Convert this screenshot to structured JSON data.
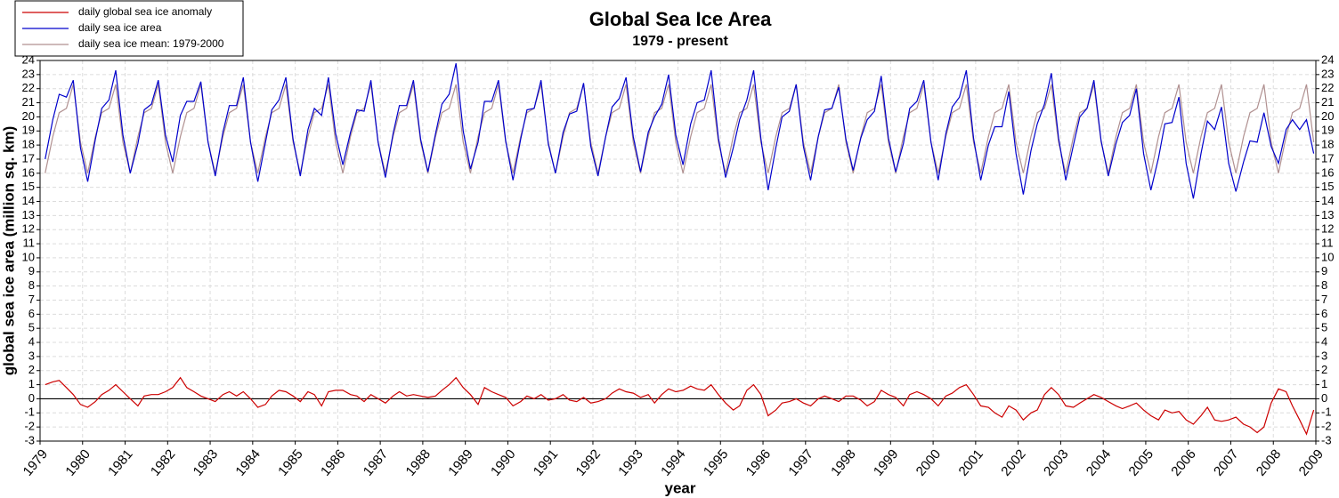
{
  "chart_data": {
    "type": "line",
    "title": "Global Sea Ice Area",
    "subtitle": "1979 - present",
    "x_label": "year",
    "y_label": "global sea ice area (million sq. km)",
    "grid": true,
    "legend": "top-left",
    "xlim": [
      1979,
      2009
    ],
    "ylim": [
      -3,
      24
    ],
    "xticks": [
      1979,
      1980,
      1981,
      1982,
      1983,
      1984,
      1985,
      1986,
      1987,
      1988,
      1989,
      1990,
      1991,
      1992,
      1993,
      1994,
      1995,
      1996,
      1997,
      1998,
      1999,
      2000,
      2001,
      2002,
      2003,
      2004,
      2005,
      2006,
      2007,
      2008,
      2009
    ],
    "yticks": [
      -3,
      -2,
      -1,
      0,
      1,
      2,
      3,
      4,
      5,
      6,
      7,
      8,
      9,
      10,
      11,
      12,
      13,
      14,
      15,
      16,
      17,
      18,
      19,
      20,
      21,
      22,
      23,
      24
    ],
    "x": [
      1979.12,
      1979.3,
      1979.45,
      1979.62,
      1979.78,
      1979.95,
      1980.12,
      1980.3,
      1980.45,
      1980.62,
      1980.78,
      1980.95,
      1981.12,
      1981.3,
      1981.45,
      1981.62,
      1981.78,
      1981.95,
      1982.12,
      1982.3,
      1982.45,
      1982.62,
      1982.78,
      1982.95,
      1983.12,
      1983.3,
      1983.45,
      1983.62,
      1983.78,
      1983.95,
      1984.12,
      1984.3,
      1984.45,
      1984.62,
      1984.78,
      1984.95,
      1985.12,
      1985.3,
      1985.45,
      1985.62,
      1985.78,
      1985.95,
      1986.12,
      1986.3,
      1986.45,
      1986.62,
      1986.78,
      1986.95,
      1987.12,
      1987.3,
      1987.45,
      1987.62,
      1987.78,
      1987.95,
      1988.12,
      1988.3,
      1988.45,
      1988.62,
      1988.78,
      1988.95,
      1989.12,
      1989.3,
      1989.45,
      1989.62,
      1989.78,
      1989.95,
      1990.12,
      1990.3,
      1990.45,
      1990.62,
      1990.78,
      1990.95,
      1991.12,
      1991.3,
      1991.45,
      1991.62,
      1991.78,
      1991.95,
      1992.12,
      1992.3,
      1992.45,
      1992.62,
      1992.78,
      1992.95,
      1993.12,
      1993.3,
      1993.45,
      1993.62,
      1993.78,
      1993.95,
      1994.12,
      1994.3,
      1994.45,
      1994.62,
      1994.78,
      1994.95,
      1995.12,
      1995.3,
      1995.45,
      1995.62,
      1995.78,
      1995.95,
      1996.12,
      1996.3,
      1996.45,
      1996.62,
      1996.78,
      1996.95,
      1997.12,
      1997.3,
      1997.45,
      1997.62,
      1997.78,
      1997.95,
      1998.12,
      1998.3,
      1998.45,
      1998.62,
      1998.78,
      1998.95,
      1999.12,
      1999.3,
      1999.45,
      1999.62,
      1999.78,
      1999.95,
      2000.12,
      2000.3,
      2000.45,
      2000.62,
      2000.78,
      2000.95,
      2001.12,
      2001.3,
      2001.45,
      2001.62,
      2001.78,
      2001.95,
      2002.12,
      2002.3,
      2002.45,
      2002.62,
      2002.78,
      2002.95,
      2003.12,
      2003.3,
      2003.45,
      2003.62,
      2003.78,
      2003.95,
      2004.12,
      2004.3,
      2004.45,
      2004.62,
      2004.78,
      2004.95,
      2005.12,
      2005.3,
      2005.45,
      2005.62,
      2005.78,
      2005.95,
      2006.12,
      2006.3,
      2006.45,
      2006.62,
      2006.78,
      2006.95,
      2007.12,
      2007.3,
      2007.45,
      2007.62,
      2007.78,
      2007.95,
      2008.12,
      2008.3,
      2008.45,
      2008.62,
      2008.78,
      2008.95
    ],
    "series": [
      {
        "name": "daily global sea ice anomaly",
        "color": "#cc0000",
        "values": [
          1.0,
          1.2,
          1.3,
          0.8,
          0.3,
          -0.4,
          -0.6,
          -0.2,
          0.3,
          0.6,
          1.0,
          0.5,
          0.0,
          -0.5,
          0.2,
          0.3,
          0.3,
          0.5,
          0.8,
          1.5,
          0.8,
          0.5,
          0.2,
          0.0,
          -0.2,
          0.3,
          0.5,
          0.2,
          0.5,
          0.0,
          -0.6,
          -0.4,
          0.2,
          0.6,
          0.5,
          0.2,
          -0.2,
          0.5,
          0.3,
          -0.5,
          0.5,
          0.6,
          0.6,
          0.3,
          0.2,
          -0.2,
          0.3,
          0.0,
          -0.3,
          0.2,
          0.5,
          0.2,
          0.3,
          0.2,
          0.1,
          0.2,
          0.6,
          1.0,
          1.5,
          0.8,
          0.3,
          -0.4,
          0.8,
          0.5,
          0.3,
          0.1,
          -0.5,
          -0.2,
          0.2,
          0.0,
          0.3,
          -0.1,
          0.0,
          0.3,
          -0.1,
          -0.2,
          0.1,
          -0.3,
          -0.2,
          0.0,
          0.4,
          0.7,
          0.5,
          0.4,
          0.1,
          0.3,
          -0.3,
          0.3,
          0.7,
          0.5,
          0.6,
          0.9,
          0.7,
          0.6,
          1.0,
          0.3,
          -0.3,
          -0.8,
          -0.5,
          0.6,
          1.0,
          0.3,
          -1.2,
          -0.8,
          -0.3,
          -0.2,
          0.0,
          -0.3,
          -0.5,
          0.0,
          0.2,
          0.0,
          -0.2,
          0.2,
          0.2,
          -0.1,
          -0.5,
          -0.2,
          0.6,
          0.3,
          0.1,
          -0.5,
          0.3,
          0.5,
          0.3,
          0.0,
          -0.5,
          0.2,
          0.4,
          0.8,
          1.0,
          0.3,
          -0.5,
          -0.6,
          -1.0,
          -1.3,
          -0.5,
          -0.8,
          -1.5,
          -1.0,
          -0.8,
          0.3,
          0.8,
          0.3,
          -0.5,
          -0.6,
          -0.3,
          0.0,
          0.3,
          0.1,
          -0.2,
          -0.5,
          -0.7,
          -0.5,
          -0.3,
          -0.8,
          -1.2,
          -1.5,
          -0.8,
          -1.0,
          -0.9,
          -1.5,
          -1.8,
          -1.2,
          -0.6,
          -1.5,
          -1.6,
          -1.5,
          -1.3,
          -1.8,
          -2.0,
          -2.4,
          -2.0,
          -0.3,
          0.7,
          0.5,
          -0.5,
          -1.5,
          -2.5,
          -0.8
        ]
      },
      {
        "name": "daily sea ice area",
        "color": "#0000cc",
        "values": [
          17.0,
          19.8,
          21.6,
          21.4,
          22.6,
          17.8,
          15.4,
          18.4,
          20.6,
          21.2,
          23.3,
          18.7,
          16.0,
          18.1,
          20.5,
          20.9,
          22.6,
          18.7,
          16.8,
          20.1,
          21.1,
          21.1,
          22.5,
          18.2,
          15.8,
          18.9,
          20.8,
          20.8,
          22.8,
          18.2,
          15.4,
          18.2,
          20.5,
          21.2,
          22.8,
          18.4,
          15.8,
          19.1,
          20.6,
          20.1,
          22.8,
          18.8,
          16.6,
          18.9,
          20.5,
          20.4,
          22.6,
          18.2,
          15.7,
          18.8,
          20.8,
          20.8,
          22.6,
          18.4,
          16.1,
          18.8,
          20.9,
          21.6,
          23.8,
          19.0,
          16.3,
          18.2,
          21.1,
          21.1,
          22.6,
          18.3,
          15.5,
          18.4,
          20.5,
          20.6,
          22.6,
          18.1,
          16.0,
          18.9,
          20.2,
          20.4,
          22.4,
          17.9,
          15.8,
          18.6,
          20.7,
          21.3,
          22.8,
          18.6,
          16.1,
          18.9,
          20.0,
          20.9,
          23.0,
          18.7,
          16.6,
          19.5,
          21.0,
          21.2,
          23.3,
          18.5,
          15.7,
          17.8,
          19.8,
          21.2,
          23.3,
          18.5,
          14.8,
          17.8,
          20.0,
          20.4,
          22.3,
          17.9,
          15.5,
          18.6,
          20.5,
          20.6,
          22.1,
          18.4,
          16.2,
          18.5,
          19.8,
          20.4,
          22.9,
          18.5,
          16.1,
          18.1,
          20.6,
          21.1,
          22.6,
          18.2,
          15.5,
          18.8,
          20.7,
          21.4,
          23.3,
          18.5,
          15.5,
          18.0,
          19.3,
          19.3,
          21.8,
          17.4,
          14.5,
          17.6,
          19.5,
          20.9,
          23.1,
          18.5,
          15.5,
          18.0,
          20.0,
          20.6,
          22.6,
          18.3,
          15.8,
          18.1,
          19.6,
          20.1,
          22.0,
          17.4,
          14.8,
          17.1,
          19.5,
          19.6,
          21.4,
          16.7,
          14.2,
          17.4,
          19.7,
          19.1,
          20.7,
          16.7,
          14.7,
          16.8,
          18.3,
          18.2,
          20.3,
          17.9,
          16.7,
          19.1,
          19.8,
          19.1,
          19.8,
          17.4
        ]
      },
      {
        "name": "daily sea ice mean: 1979-2000",
        "color": "#b09090",
        "values": [
          16.0,
          18.6,
          20.3,
          20.6,
          22.3,
          18.2,
          16.0,
          18.6,
          20.3,
          20.6,
          22.3,
          18.2,
          16.0,
          18.6,
          20.3,
          20.6,
          22.3,
          18.2,
          16.0,
          18.6,
          20.3,
          20.6,
          22.3,
          18.2,
          16.0,
          18.6,
          20.3,
          20.6,
          22.3,
          18.2,
          16.0,
          18.6,
          20.3,
          20.6,
          22.3,
          18.2,
          16.0,
          18.6,
          20.3,
          20.6,
          22.3,
          18.2,
          16.0,
          18.6,
          20.3,
          20.6,
          22.3,
          18.2,
          16.0,
          18.6,
          20.3,
          20.6,
          22.3,
          18.2,
          16.0,
          18.6,
          20.3,
          20.6,
          22.3,
          18.2,
          16.0,
          18.6,
          20.3,
          20.6,
          22.3,
          18.2,
          16.0,
          18.6,
          20.3,
          20.6,
          22.3,
          18.2,
          16.0,
          18.6,
          20.3,
          20.6,
          22.3,
          18.2,
          16.0,
          18.6,
          20.3,
          20.6,
          22.3,
          18.2,
          16.0,
          18.6,
          20.3,
          20.6,
          22.3,
          18.2,
          16.0,
          18.6,
          20.3,
          20.6,
          22.3,
          18.2,
          16.0,
          18.6,
          20.3,
          20.6,
          22.3,
          18.2,
          16.0,
          18.6,
          20.3,
          20.6,
          22.3,
          18.2,
          16.0,
          18.6,
          20.3,
          20.6,
          22.3,
          18.2,
          16.0,
          18.6,
          20.3,
          20.6,
          22.3,
          18.2,
          16.0,
          18.6,
          20.3,
          20.6,
          22.3,
          18.2,
          16.0,
          18.6,
          20.3,
          20.6,
          22.3,
          18.2,
          16.0,
          18.6,
          20.3,
          20.6,
          22.3,
          18.2,
          16.0,
          18.6,
          20.3,
          20.6,
          22.3,
          18.2,
          16.0,
          18.6,
          20.3,
          20.6,
          22.3,
          18.2,
          16.0,
          18.6,
          20.3,
          20.6,
          22.3,
          18.2,
          16.0,
          18.6,
          20.3,
          20.6,
          22.3,
          18.2,
          16.0,
          18.6,
          20.3,
          20.6,
          22.3,
          18.2,
          16.0,
          18.6,
          20.3,
          20.6,
          22.3,
          18.2,
          16.0,
          18.6,
          20.3,
          20.6,
          22.3,
          18.2
        ]
      }
    ]
  }
}
